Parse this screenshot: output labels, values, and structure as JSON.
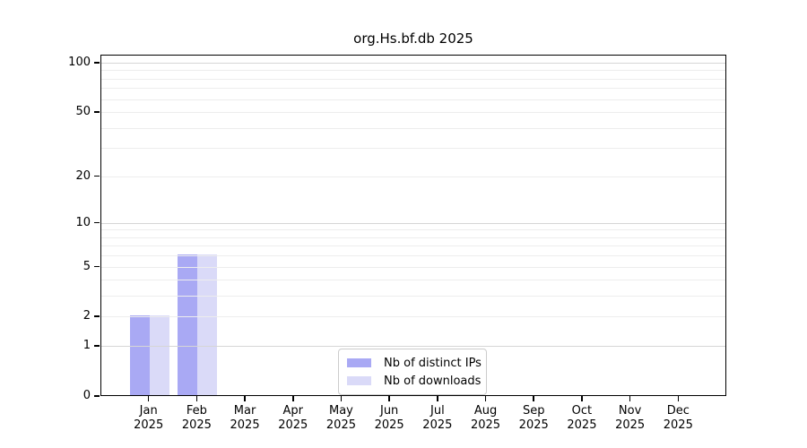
{
  "chart_data": {
    "type": "bar",
    "title": "org.Hs.bf.db 2025",
    "categories": [
      "Jan",
      "Feb",
      "Mar",
      "Apr",
      "May",
      "Jun",
      "Jul",
      "Aug",
      "Sep",
      "Oct",
      "Nov",
      "Dec"
    ],
    "x_year_label": "2025",
    "series": [
      {
        "name": "Nb of distinct IPs",
        "color": "#a9a9f4",
        "values": [
          2,
          6,
          0,
          0,
          0,
          0,
          0,
          0,
          0,
          0,
          0,
          0
        ]
      },
      {
        "name": "Nb of downloads",
        "color": "#dadaf8",
        "values": [
          2,
          6,
          0,
          0,
          0,
          0,
          0,
          0,
          0,
          0,
          0,
          0
        ]
      }
    ],
    "yticks": [
      100,
      50,
      20,
      10,
      5,
      2,
      1,
      0
    ],
    "scale": "log1p",
    "ylim": [
      0,
      112
    ],
    "grid": true,
    "grid_minor_values": [
      2,
      3,
      4,
      5,
      6,
      7,
      8,
      9,
      20,
      30,
      40,
      50,
      60,
      70,
      80,
      90
    ],
    "grid_major_values": [
      1,
      10,
      100
    ],
    "grid_minor_color": "#ededed",
    "grid_major_color": "#d6d6d6",
    "legend_position": "inside-bottom-center",
    "xlabel": "",
    "ylabel": ""
  }
}
